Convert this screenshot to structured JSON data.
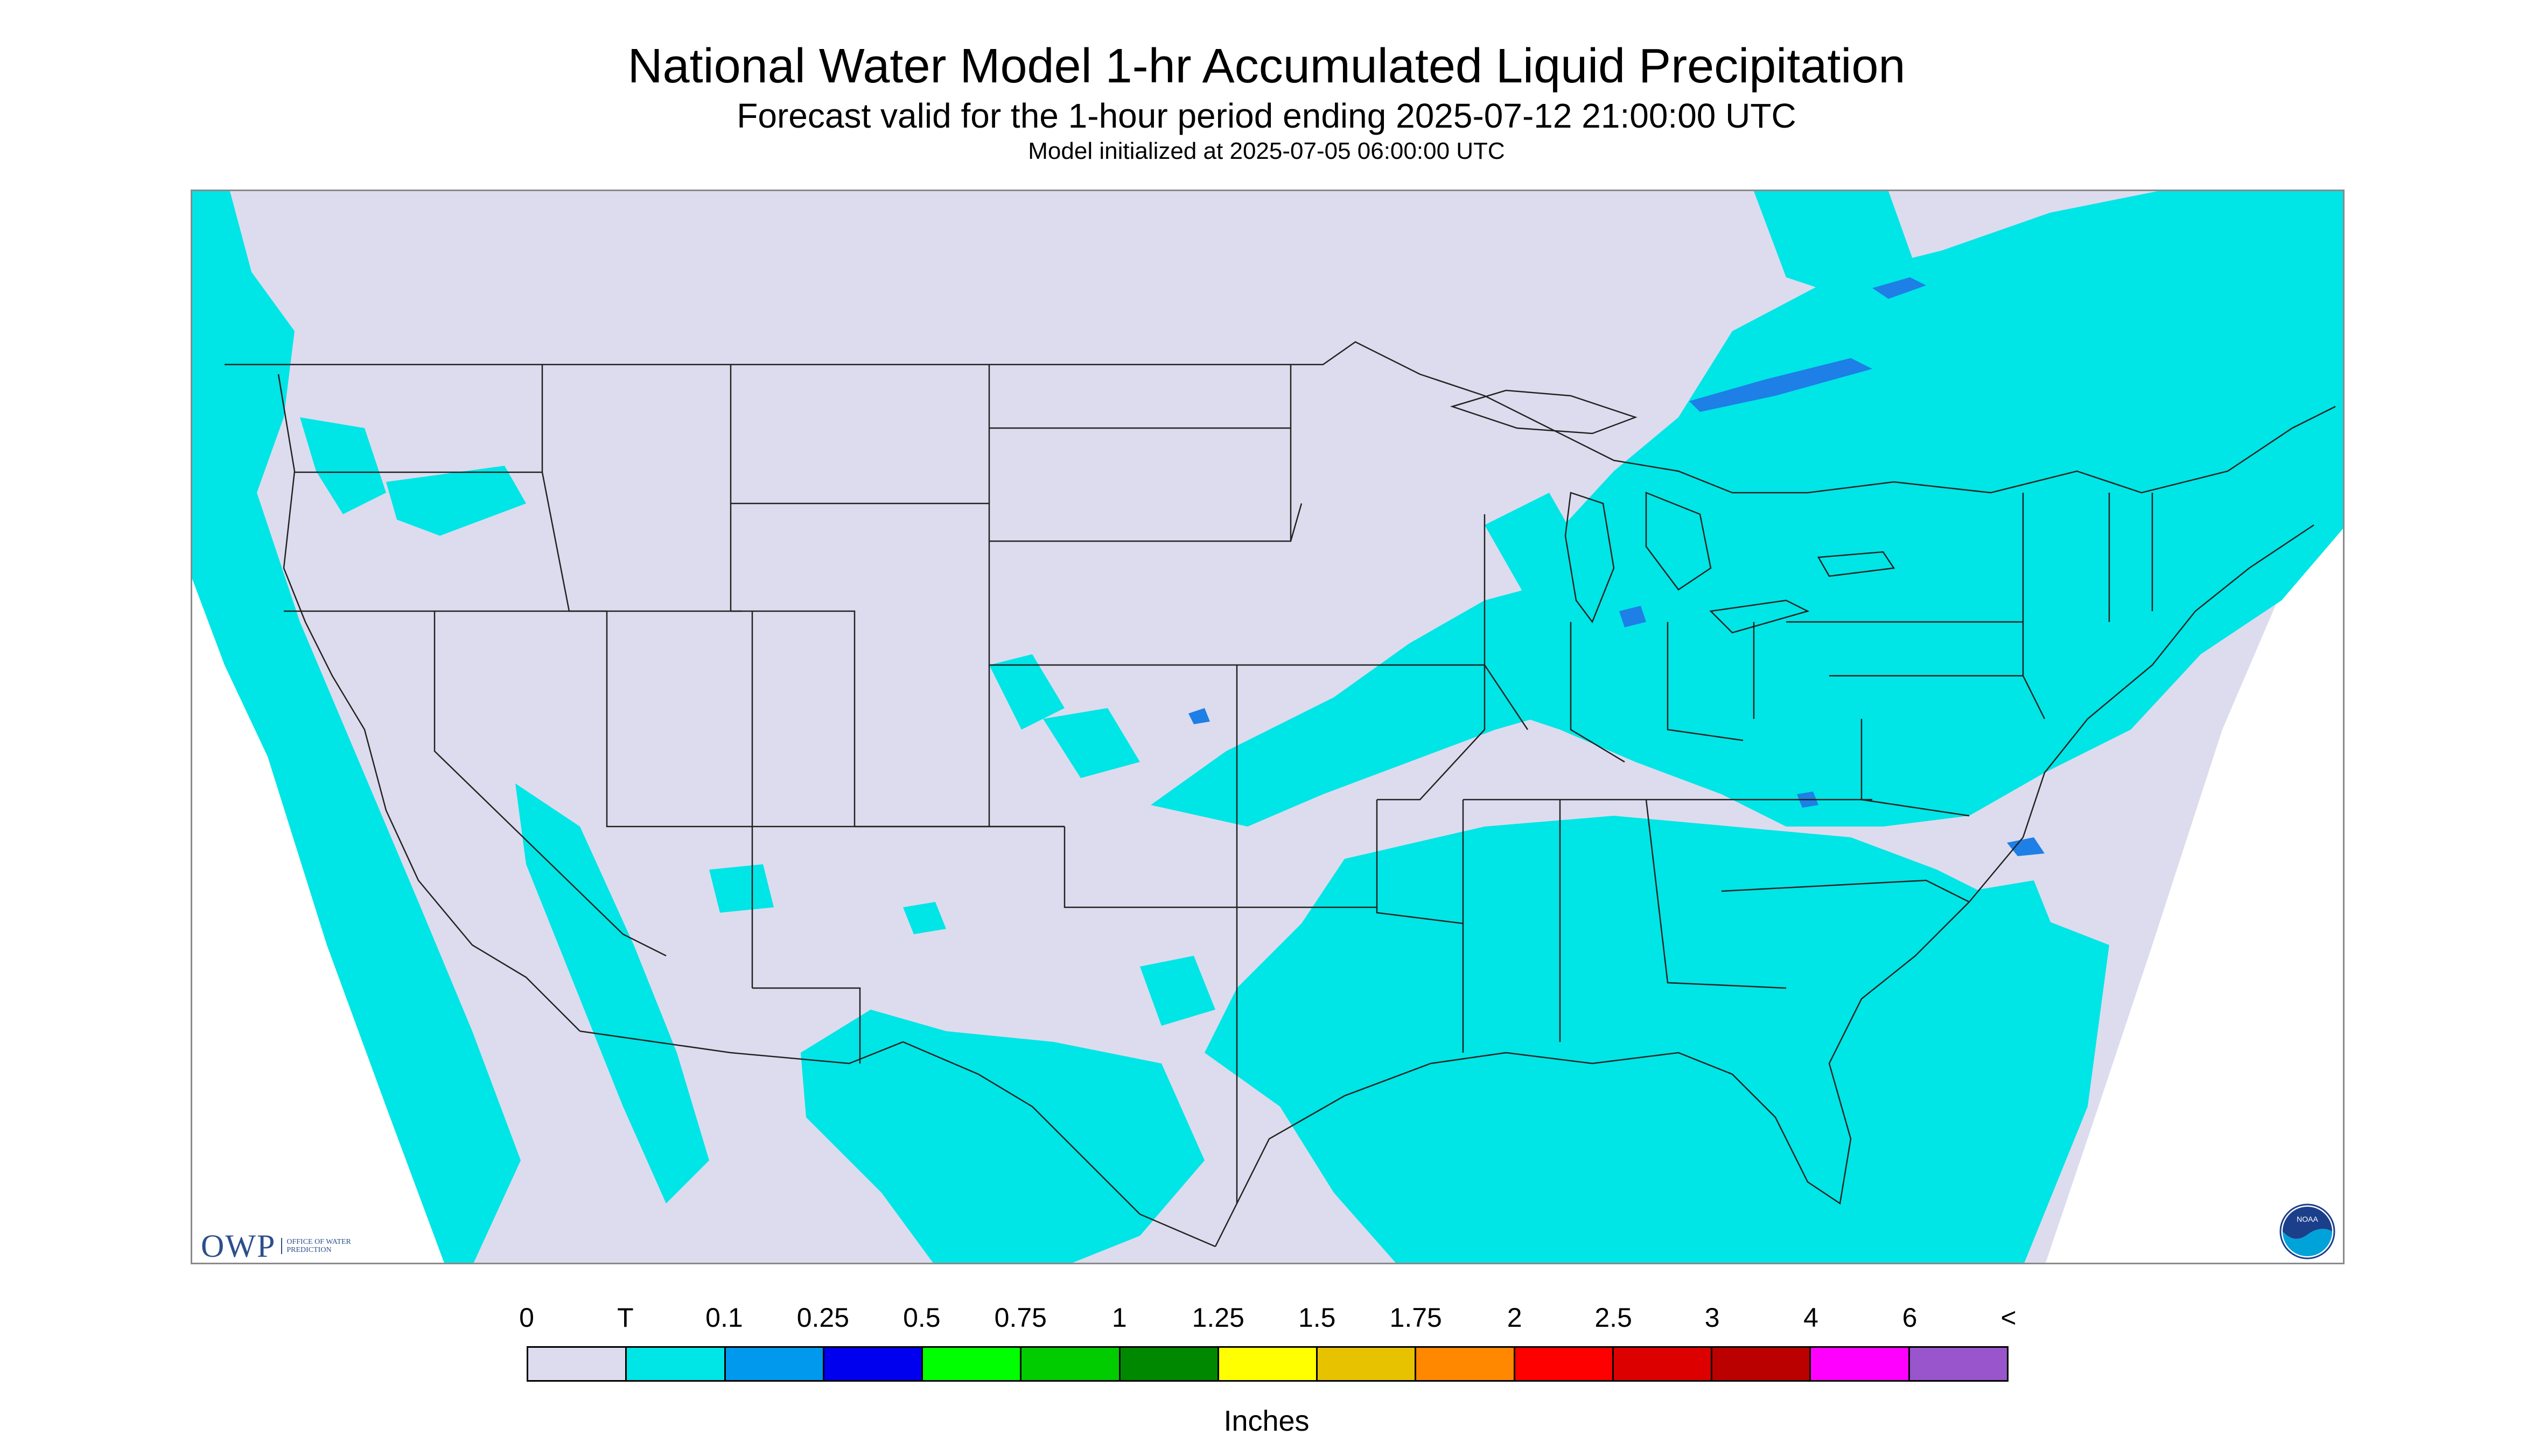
{
  "header": {
    "title": "National Water Model 1-hr Accumulated Liquid Precipitation",
    "subtitle": "Forecast valid for the 1-hour period ending 2025-07-12 21:00:00 UTC",
    "init": "Model initialized at 2025-07-05 06:00:00 UTC"
  },
  "logos": {
    "owp_main": "OWP",
    "owp_sub": "OFFICE OF WATER PREDICTION",
    "noaa": "NOAA"
  },
  "legend": {
    "unit": "Inches",
    "tick_labels": [
      "0",
      "T",
      "0.1",
      "0.25",
      "0.5",
      "0.75",
      "1",
      "1.25",
      "1.5",
      "1.75",
      "2",
      "2.5",
      "3",
      "4",
      "6",
      "<"
    ],
    "colors": [
      "#dcdcee",
      "#00e5e5",
      "#0099ee",
      "#0000ee",
      "#00ff00",
      "#00cc00",
      "#008800",
      "#ffff00",
      "#e6c200",
      "#ff8800",
      "#ff0000",
      "#dd0000",
      "#bb0000",
      "#ff00ff",
      "#9955cc"
    ]
  },
  "map": {
    "background_color": "#dcdcee",
    "precip_color": "#00e5e5",
    "heavier_color": "#1e7fe6",
    "boundary_color": "#222222"
  }
}
